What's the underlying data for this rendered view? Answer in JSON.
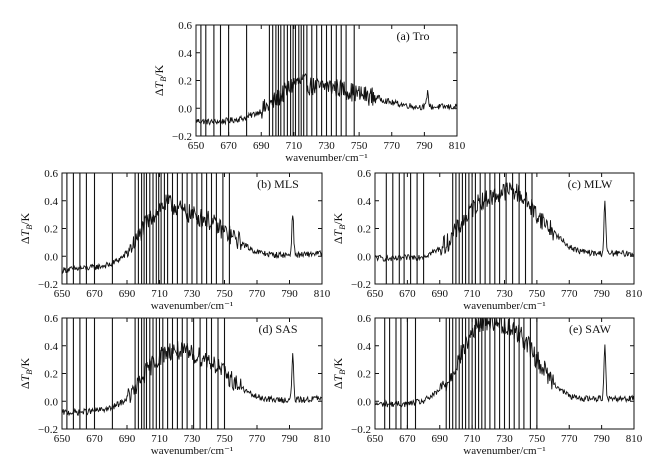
{
  "colors": {
    "line": "#111111",
    "axis": "#111111",
    "background": "#ffffff"
  },
  "chart_data": [
    {
      "type": "line",
      "panel": "(a) Tro",
      "xlabel": "wavenumber/cm⁻¹",
      "ylabel": "ΔT_B/K",
      "ylabel_parts": {
        "delta": "Δ",
        "var": "T",
        "sub": "B",
        "unit": "/K"
      },
      "xlim": [
        650,
        810
      ],
      "ylim": [
        -0.2,
        0.6
      ],
      "xticks": [
        "650",
        "670",
        "690",
        "710",
        "730",
        "750",
        "770",
        "790",
        "810"
      ],
      "yticks": [
        "0.6",
        "0.4",
        "0.2",
        "0.0",
        "−0.2"
      ],
      "profile": {
        "x": [
          650,
          660,
          670,
          680,
          688,
          695,
          700,
          705,
          710,
          715,
          720,
          725,
          730,
          735,
          740,
          745,
          750,
          755,
          760,
          765,
          770,
          775,
          780,
          785,
          790,
          795,
          800,
          805,
          810
        ],
        "y": [
          -0.09,
          -0.1,
          -0.09,
          -0.07,
          -0.03,
          0.02,
          0.07,
          0.12,
          0.18,
          0.19,
          0.16,
          0.15,
          0.16,
          0.15,
          0.14,
          0.12,
          0.1,
          0.09,
          0.08,
          0.06,
          0.04,
          0.03,
          0.02,
          0.01,
          0.01,
          0.01,
          0.01,
          0.01,
          0.01
        ]
      },
      "peak": {
        "x": 792,
        "y": 0.12
      },
      "spike_wavenumbers": [
        653,
        656,
        661,
        665,
        670,
        681,
        695,
        697,
        699,
        700.5,
        702,
        704,
        706,
        708,
        709.5,
        711,
        713,
        714.5,
        716,
        718,
        721,
        724,
        727,
        730,
        733,
        736,
        739,
        742,
        747
      ]
    },
    {
      "type": "line",
      "panel": "(b) MLS",
      "xlabel": "wavenumber/cm⁻¹",
      "ylabel": "ΔT_B/K",
      "ylabel_parts": {
        "delta": "Δ",
        "var": "T",
        "sub": "B",
        "unit": "/K"
      },
      "xlim": [
        650,
        810
      ],
      "ylim": [
        -0.2,
        0.6
      ],
      "xticks": [
        "650",
        "670",
        "690",
        "710",
        "730",
        "750",
        "770",
        "790",
        "810"
      ],
      "yticks": [
        "0.6",
        "0.4",
        "0.2",
        "0.0",
        "−0.2"
      ],
      "profile": {
        "x": [
          650,
          660,
          670,
          680,
          688,
          695,
          700,
          705,
          710,
          715,
          720,
          725,
          730,
          735,
          740,
          745,
          750,
          755,
          760,
          765,
          770,
          775,
          780,
          785,
          790,
          795,
          800,
          805,
          810
        ],
        "y": [
          -0.1,
          -0.09,
          -0.08,
          -0.06,
          0.0,
          0.1,
          0.2,
          0.28,
          0.35,
          0.38,
          0.36,
          0.32,
          0.3,
          0.28,
          0.26,
          0.22,
          0.18,
          0.14,
          0.1,
          0.06,
          0.03,
          0.02,
          0.01,
          0.01,
          0.01,
          0.01,
          0.01,
          0.02,
          0.02
        ]
      },
      "peak": {
        "x": 792,
        "y": 0.31
      },
      "spike_wavenumbers": [
        653,
        657,
        661,
        665,
        670,
        681,
        695,
        697,
        699,
        700.5,
        702,
        704,
        706,
        708,
        709.5,
        711,
        713,
        715,
        718,
        721,
        724,
        727,
        730,
        733,
        736,
        739,
        742,
        745,
        749,
        753
      ]
    },
    {
      "type": "line",
      "panel": "(c) MLW",
      "xlabel": "wavenumber/cm⁻¹",
      "ylabel": "ΔT_B/K",
      "ylabel_parts": {
        "delta": "Δ",
        "var": "T",
        "sub": "B",
        "unit": "/K"
      },
      "xlim": [
        650,
        810
      ],
      "ylim": [
        -0.2,
        0.6
      ],
      "xticks": [
        "650",
        "670",
        "690",
        "710",
        "730",
        "750",
        "770",
        "790",
        "810"
      ],
      "yticks": [
        "0.6",
        "0.4",
        "0.2",
        "0.0",
        "−0.2"
      ],
      "profile": {
        "x": [
          650,
          660,
          670,
          680,
          688,
          695,
          700,
          705,
          710,
          715,
          720,
          725,
          730,
          735,
          740,
          745,
          750,
          755,
          760,
          765,
          770,
          775,
          780,
          785,
          790,
          795,
          800,
          805,
          810
        ],
        "y": [
          -0.01,
          -0.02,
          -0.01,
          0.0,
          0.04,
          0.1,
          0.18,
          0.26,
          0.34,
          0.4,
          0.42,
          0.44,
          0.47,
          0.48,
          0.44,
          0.38,
          0.3,
          0.24,
          0.18,
          0.12,
          0.07,
          0.04,
          0.03,
          0.02,
          0.02,
          0.02,
          0.02,
          0.02,
          0.02
        ]
      },
      "peak": {
        "x": 792,
        "y": 0.4
      },
      "spike_wavenumbers": [
        657,
        661,
        665,
        668,
        672,
        676,
        680,
        698,
        700,
        702,
        704,
        706,
        708,
        710,
        712,
        715,
        718,
        721,
        724,
        727,
        731,
        735,
        739,
        743,
        747
      ]
    },
    {
      "type": "line",
      "panel": "(d) SAS",
      "xlabel": "wavenumber/cm⁻¹",
      "ylabel": "ΔT_B/K",
      "ylabel_parts": {
        "delta": "Δ",
        "var": "T",
        "sub": "B",
        "unit": "/K"
      },
      "xlim": [
        650,
        810
      ],
      "ylim": [
        -0.2,
        0.6
      ],
      "xticks": [
        "650",
        "670",
        "690",
        "710",
        "730",
        "750",
        "770",
        "790",
        "810"
      ],
      "yticks": [
        "0.6",
        "0.4",
        "0.2",
        "0.0",
        "−0.2"
      ],
      "profile": {
        "x": [
          650,
          660,
          670,
          680,
          688,
          695,
          700,
          705,
          710,
          715,
          720,
          725,
          730,
          735,
          740,
          745,
          750,
          755,
          760,
          765,
          770,
          775,
          780,
          785,
          790,
          795,
          800,
          805,
          810
        ],
        "y": [
          -0.08,
          -0.08,
          -0.07,
          -0.05,
          0.0,
          0.08,
          0.18,
          0.26,
          0.32,
          0.36,
          0.37,
          0.35,
          0.34,
          0.32,
          0.3,
          0.26,
          0.2,
          0.15,
          0.1,
          0.06,
          0.03,
          0.02,
          0.01,
          0.01,
          0.01,
          0.01,
          0.01,
          0.02,
          0.02
        ]
      },
      "peak": {
        "x": 792,
        "y": 0.33
      },
      "spike_wavenumbers": [
        653,
        657,
        661,
        665,
        670,
        681,
        695,
        697,
        699,
        700.5,
        702,
        704,
        706,
        708,
        710,
        712,
        715,
        718,
        721,
        724,
        727,
        731,
        735,
        739,
        742,
        746,
        750
      ]
    },
    {
      "type": "line",
      "panel": "(e) SAW",
      "xlabel": "wavenumber/cm⁻¹",
      "ylabel": "ΔT_B/K",
      "ylabel_parts": {
        "delta": "Δ",
        "var": "T",
        "sub": "B",
        "unit": "/K"
      },
      "xlim": [
        650,
        810
      ],
      "ylim": [
        -0.2,
        0.6
      ],
      "xticks": [
        "650",
        "670",
        "690",
        "710",
        "730",
        "750",
        "770",
        "790",
        "810"
      ],
      "yticks": [
        "0.6",
        "0.4",
        "0.2",
        "0.0",
        "−0.2"
      ],
      "profile": {
        "x": [
          650,
          660,
          670,
          680,
          688,
          695,
          700,
          705,
          710,
          715,
          720,
          725,
          730,
          735,
          740,
          745,
          750,
          755,
          760,
          765,
          770,
          775,
          780,
          785,
          790,
          795,
          800,
          805,
          810
        ],
        "y": [
          -0.02,
          -0.02,
          -0.02,
          0.0,
          0.06,
          0.14,
          0.26,
          0.38,
          0.5,
          0.56,
          0.58,
          0.57,
          0.55,
          0.52,
          0.48,
          0.4,
          0.3,
          0.22,
          0.14,
          0.08,
          0.04,
          0.02,
          0.02,
          0.02,
          0.02,
          0.02,
          0.02,
          0.02,
          0.02
        ]
      },
      "peak": {
        "x": 792,
        "y": 0.42
      },
      "spike_wavenumbers": [
        656,
        659,
        663,
        666,
        670,
        675,
        694,
        696,
        698,
        700,
        702,
        704,
        706,
        708,
        710,
        712,
        714,
        716,
        718,
        721,
        724,
        727,
        730,
        733,
        736,
        739,
        742,
        746,
        750
      ]
    }
  ]
}
